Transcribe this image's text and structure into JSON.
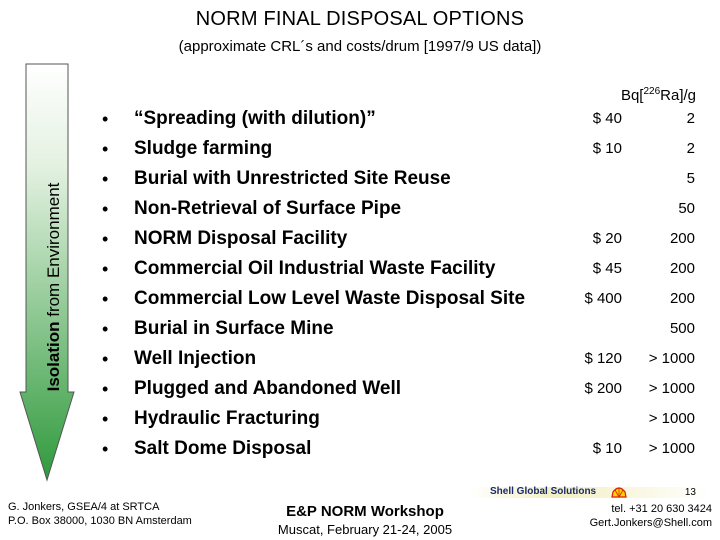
{
  "title": "NORM FINAL DISPOSAL OPTIONS",
  "subtitle": "(approximate CRL´s and costs/drum [1997/9 US data])",
  "arrow_label": {
    "bold": "Isolation",
    "rest": " from Environment"
  },
  "column_header": {
    "prefix": "Bq[",
    "sup": "226",
    "suffix": "Ra]/g"
  },
  "bullet_char": "•",
  "items": [
    {
      "label": "“Spreading (with dilution)”",
      "cost": "$ 40",
      "value": "2"
    },
    {
      "label": "Sludge farming",
      "cost": "$ 10",
      "value": "2"
    },
    {
      "label": "Burial with Unrestricted Site Reuse",
      "cost": "",
      "value": "5"
    },
    {
      "label": "Non-Retrieval of Surface Pipe",
      "cost": "",
      "value": "50"
    },
    {
      "label": "NORM Disposal Facility",
      "cost": "$ 20",
      "value": "200"
    },
    {
      "label": "Commercial Oil Industrial Waste Facility",
      "cost": "$ 45",
      "value": "200"
    },
    {
      "label": "Commercial Low Level Waste Disposal Site",
      "cost": "$ 400",
      "value": "200"
    },
    {
      "label": "Burial in Surface Mine",
      "cost": "",
      "value": "500"
    },
    {
      "label": "Well Injection",
      "cost": "$ 120",
      "value": "> 1000"
    },
    {
      "label": "Plugged and Abandoned Well",
      "cost": "$ 200",
      "value": "> 1000"
    },
    {
      "label": "Hydraulic Fracturing",
      "cost": "",
      "value": "> 1000"
    },
    {
      "label": "Salt Dome Disposal",
      "cost": "$ 10",
      "value": "> 1000"
    }
  ],
  "footer": {
    "left_line1": "G. Jonkers, GSEA/4 at SRTCA",
    "left_line2": "P.O. Box 38000, 1030 BN Amsterdam",
    "center_line1": "E&P NORM Workshop",
    "center_line2": "Muscat, February 21-24, 2005",
    "page_number": "13",
    "logo_text": "Shell Global Solutions",
    "right_line1": "tel. +31 20 630 3424",
    "right_line2": "Gert.Jonkers@Shell.com"
  },
  "colors": {
    "arrow_top": "#ffffff",
    "arrow_bottom": "#2f9a3c",
    "shell_red": "#d81e05",
    "shell_yellow": "#ffd500"
  }
}
